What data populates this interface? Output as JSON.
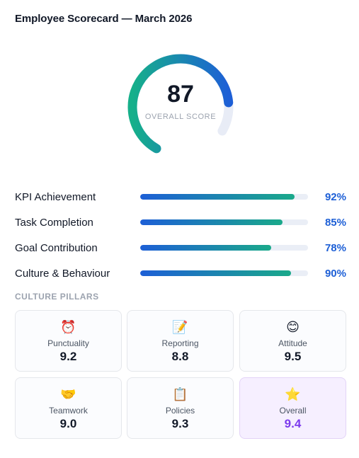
{
  "header": {
    "title": "Employee Scorecard — March 2026"
  },
  "overall": {
    "score": "87",
    "label": "OVERALL SCORE",
    "value": 87
  },
  "kpis": [
    {
      "label": "KPI Achievement",
      "value": "92%",
      "percent": 92
    },
    {
      "label": "Task Completion",
      "value": "85%",
      "percent": 85
    },
    {
      "label": "Goal Contribution",
      "value": "78%",
      "percent": 78
    },
    {
      "label": "Culture & Behaviour",
      "value": "90%",
      "percent": 90
    }
  ],
  "culture": {
    "title": "CULTURE PILLARS",
    "pillars": [
      {
        "label": "Punctuality",
        "value": "9.2",
        "icon": "⏰",
        "icon_name": "alarm-clock-icon"
      },
      {
        "label": "Reporting",
        "value": "8.8",
        "icon": "📝",
        "icon_name": "memo-icon"
      },
      {
        "label": "Attitude",
        "value": "9.5",
        "icon": "😊",
        "icon_name": "smile-icon"
      },
      {
        "label": "Teamwork",
        "value": "9.0",
        "icon": "🤝",
        "icon_name": "handshake-icon"
      },
      {
        "label": "Policies",
        "value": "9.3",
        "icon": "📋",
        "icon_name": "clipboard-icon"
      },
      {
        "label": "Overall",
        "value": "9.4",
        "icon": "⭐",
        "icon_name": "star-icon"
      }
    ]
  },
  "colors": {
    "accent_blue": "#1d5fd6",
    "accent_teal": "#1aa98a",
    "highlight_purple": "#7c3aed",
    "track": "#eaeef6"
  }
}
